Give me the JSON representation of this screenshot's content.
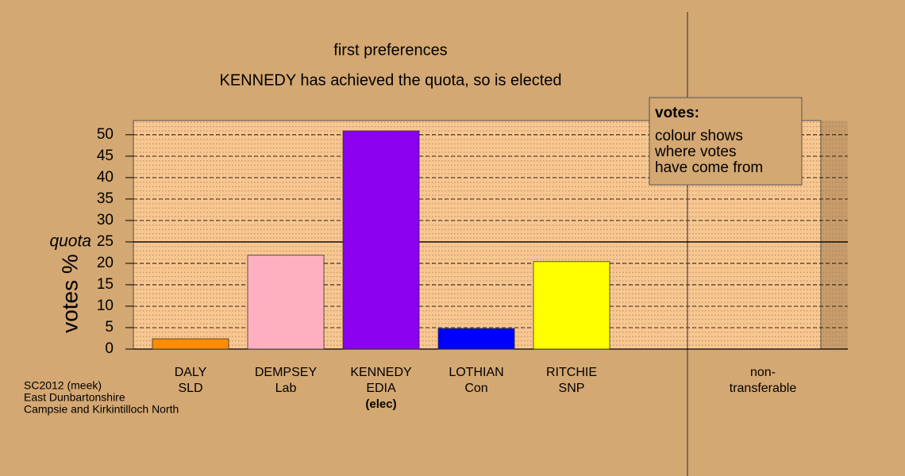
{
  "chart_data": {
    "type": "bar",
    "title": "first preferences",
    "subtitle": "KENNEDY has achieved the quota, so is elected",
    "y_label": "votes %",
    "quota_label": "quota",
    "quota": 25,
    "categories": [
      "DALY",
      "DEMPSEY",
      "KENNEDY",
      "LOTHIAN",
      "RITCHIE",
      "non-"
    ],
    "parties": [
      "SLD",
      "Lab",
      "EDIA",
      "Con",
      "SNP",
      "transferable"
    ],
    "notes": [
      null,
      null,
      "(elec)",
      null,
      null,
      null
    ],
    "values": [
      2.4,
      21.9,
      50.9,
      4.8,
      20.4,
      0
    ],
    "colors": [
      "#ff8c00",
      "#ffb0c0",
      "#8b00ee",
      "#0000ff",
      "#ffff00",
      "#d4a873"
    ],
    "ylim": [
      0,
      53.3
    ],
    "yticks": [
      0,
      5,
      10,
      15,
      20,
      25,
      30,
      35,
      40,
      45,
      50
    ],
    "grid": true,
    "legend": {
      "title": "votes:",
      "lines": [
        "colour shows",
        "where votes",
        "have come from"
      ]
    },
    "footer": [
      "SC2012 (meek)",
      "East Dunbartonshire",
      "Campsie and Kirkintilloch North"
    ]
  }
}
